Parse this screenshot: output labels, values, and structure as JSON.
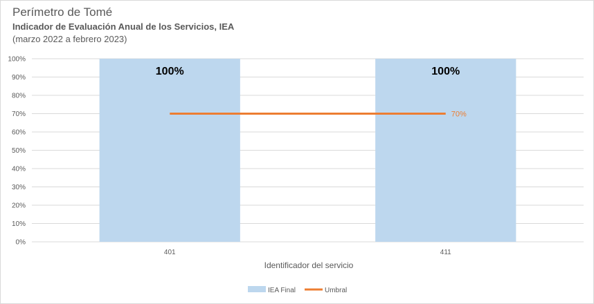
{
  "header": {
    "title": "Perímetro de Tomé",
    "subtitle": "Indicador de Evaluación Anual de los Servicios, IEA",
    "period": "(marzo 2022  a febrero 2023)"
  },
  "chart_data": {
    "type": "bar",
    "categories": [
      "401",
      "411"
    ],
    "series": [
      {
        "name": "IEA Final",
        "type": "bar",
        "values": [
          100,
          100
        ],
        "color": "#bdd7ee"
      },
      {
        "name": "Umbral",
        "type": "line",
        "values": [
          70,
          70
        ],
        "color": "#ed7d31"
      }
    ],
    "data_labels": [
      "100%",
      "100%"
    ],
    "threshold_label": "70%",
    "xlabel": "Identificador del servicio",
    "ylabel": "",
    "ylim": [
      0,
      100
    ],
    "yticks": [
      "0%",
      "10%",
      "20%",
      "30%",
      "40%",
      "50%",
      "60%",
      "70%",
      "80%",
      "90%",
      "100%"
    ],
    "grid": true,
    "legend": "bottom"
  }
}
